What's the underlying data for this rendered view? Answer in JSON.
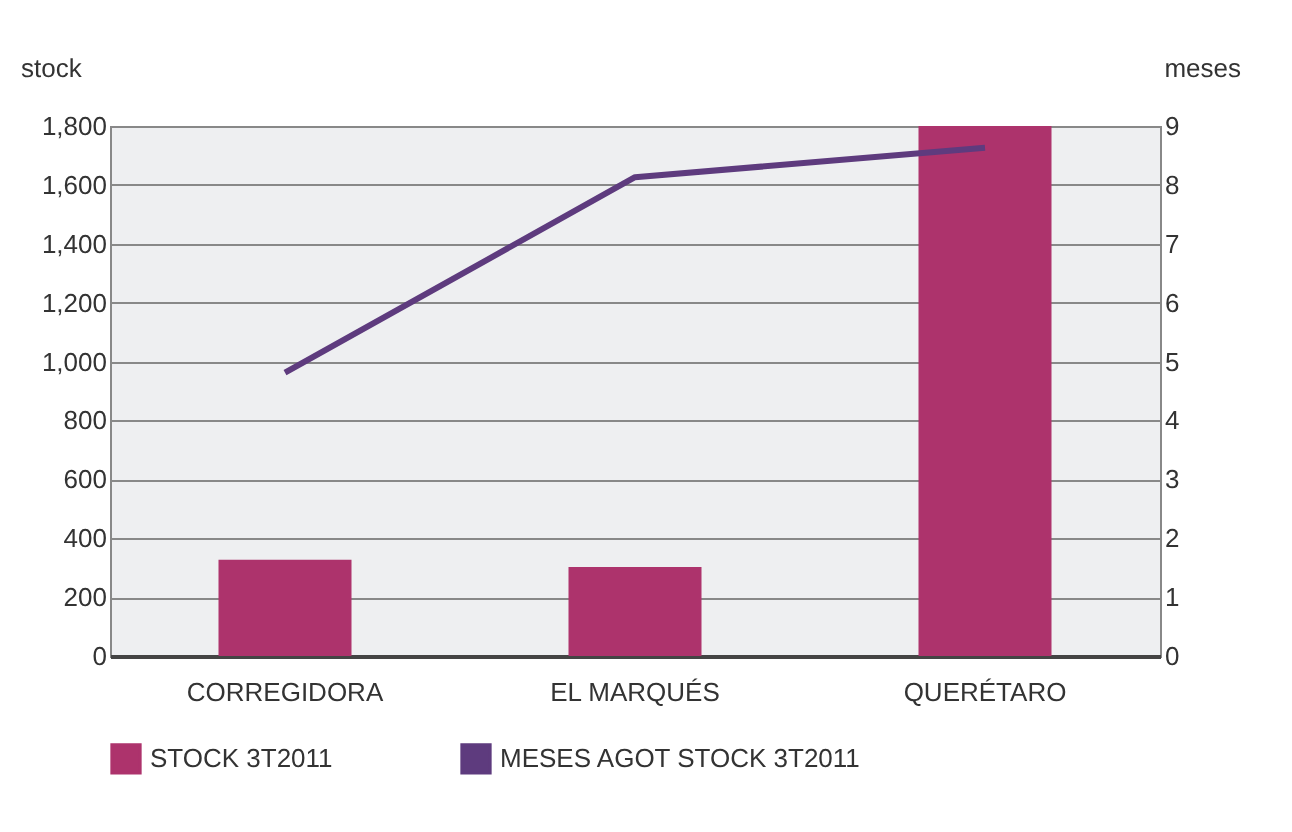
{
  "chart_data": {
    "type": "bar",
    "categories": [
      "CORREGIDORA",
      "EL MARQUÉS",
      "QUERÉTARO"
    ],
    "series": [
      {
        "name": "STOCK 3T2011",
        "color": "#ad336c",
        "values": [
          327,
          302,
          1800
        ]
      },
      {
        "name": "MESES AGOT STOCK 3T2011",
        "type": "line",
        "axis": "y2",
        "color": "#5e3b7e",
        "values": [
          4.81,
          8.13,
          8.63
        ]
      }
    ],
    "ylabel": "stock",
    "y2label": "meses",
    "ylim": [
      0,
      1800
    ],
    "yticks": [
      0,
      200,
      400,
      600,
      800,
      {
        "value": 1000,
        "label": "1,000"
      },
      {
        "value": 1200,
        "label": "1,200"
      },
      {
        "value": 1400,
        "label": "1,400"
      },
      {
        "value": 1600,
        "label": "1,600"
      },
      {
        "value": 1800,
        "label": "1,800"
      }
    ],
    "y2lim": [
      0,
      9
    ],
    "y2ticks": [
      0,
      1,
      2,
      3,
      4,
      5,
      6,
      7,
      8,
      9
    ],
    "grid": "y",
    "legend": "bottom",
    "marker": "none",
    "line_style": "solid"
  }
}
